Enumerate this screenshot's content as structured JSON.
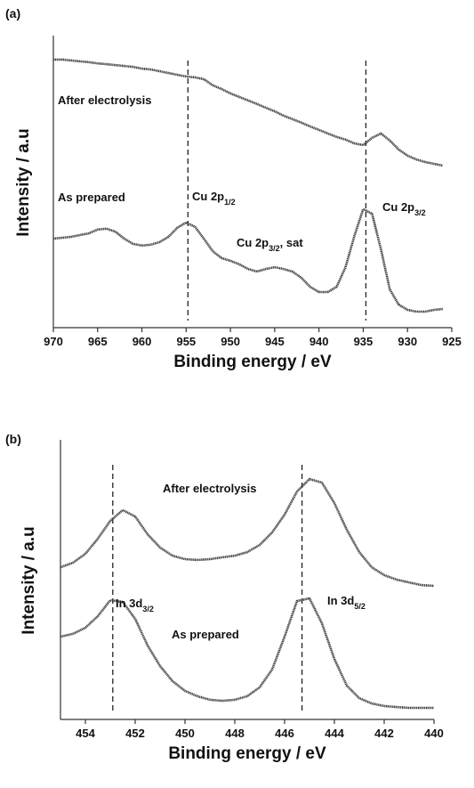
{
  "chart_data": [
    {
      "type": "line",
      "panel_label": "(a)",
      "xlabel": "Binding energy / eV",
      "ylabel": "Intensity / a.u",
      "xlim": [
        970,
        925
      ],
      "xticks": [
        970,
        965,
        960,
        955,
        950,
        945,
        940,
        935,
        930,
        925
      ],
      "ylim": [
        0,
        100
      ],
      "reference_lines": [
        954.8,
        934.7
      ],
      "x": [
        970,
        969,
        968,
        967,
        966,
        965,
        964,
        963,
        962,
        961,
        960,
        959,
        958,
        957,
        956,
        955,
        954,
        953,
        952,
        951,
        950,
        949,
        948,
        947,
        946,
        945,
        944,
        943,
        942,
        941,
        940,
        939,
        938,
        937,
        936,
        935,
        934,
        933,
        932,
        931,
        930,
        929,
        928,
        927,
        926
      ],
      "series": [
        {
          "name": "After electrolysis",
          "color": "#3a3a3a",
          "values": [
            91.8,
            91.8,
            91.5,
            91.2,
            90.9,
            90.5,
            90.2,
            89.9,
            89.6,
            89.3,
            88.7,
            88.4,
            87.8,
            87.2,
            86.6,
            86.0,
            85.7,
            85.1,
            83.0,
            81.7,
            80.2,
            79.0,
            77.8,
            76.6,
            75.3,
            74.1,
            72.6,
            71.4,
            70.2,
            68.9,
            67.7,
            66.5,
            65.3,
            64.4,
            63.1,
            62.5,
            65.0,
            66.5,
            64.1,
            61.0,
            58.9,
            57.6,
            56.7,
            56.1,
            55.5
          ]
        },
        {
          "name": "As prepared",
          "color": "#3a3a3a",
          "values": [
            30.5,
            30.8,
            31.1,
            31.7,
            32.3,
            33.6,
            33.9,
            32.9,
            30.5,
            28.7,
            28.1,
            28.4,
            29.3,
            31.1,
            34.2,
            36.0,
            34.5,
            30.5,
            26.2,
            23.8,
            22.9,
            21.7,
            20.1,
            19.2,
            20.1,
            20.7,
            20.1,
            19.2,
            17.1,
            14.0,
            12.2,
            12.2,
            14.0,
            20.7,
            31.4,
            40.6,
            39.0,
            26.8,
            13.1,
            7.9,
            6.1,
            5.5,
            5.5,
            6.1,
            6.4
          ]
        }
      ],
      "annotations": [
        {
          "parts": [
            {
              "text": "Cu 2p"
            },
            {
              "sub": "1/2"
            }
          ]
        },
        {
          "parts": [
            {
              "text": "Cu 2p"
            },
            {
              "sub": "3/2"
            }
          ]
        },
        {
          "parts": [
            {
              "text": "Cu 2p"
            },
            {
              "sub": "3/2"
            },
            {
              "text": ", sat"
            }
          ]
        }
      ]
    },
    {
      "type": "line",
      "panel_label": "(b)",
      "xlabel": "Binding energy / eV",
      "ylabel": "Intensity / a.u",
      "xlim": [
        455,
        440
      ],
      "xticks": [
        454,
        452,
        450,
        448,
        446,
        444,
        442,
        440
      ],
      "ylim": [
        0,
        100
      ],
      "reference_lines": [
        452.9,
        445.3
      ],
      "x": [
        455,
        454.5,
        454,
        453.5,
        453,
        452.5,
        452,
        451.5,
        451,
        450.5,
        450,
        449.5,
        449,
        448.5,
        448,
        447.5,
        447,
        446.5,
        446,
        445.5,
        445,
        444.5,
        444,
        443.5,
        443,
        442.5,
        442,
        441.5,
        441,
        440.5,
        440
      ],
      "series": [
        {
          "name": "After electrolysis",
          "color": "#3a3a3a",
          "values": [
            56.4,
            58.1,
            61.4,
            67.0,
            73.6,
            77.6,
            75.2,
            68.6,
            63.7,
            60.7,
            59.4,
            59.1,
            59.4,
            60.1,
            60.7,
            62.0,
            64.7,
            69.3,
            75.9,
            84.5,
            89.1,
            87.8,
            80.2,
            70.3,
            62.0,
            56.4,
            53.5,
            51.8,
            50.8,
            49.8,
            49.5
          ]
        },
        {
          "name": "As prepared",
          "color": "#3a3a3a",
          "values": [
            30.7,
            31.7,
            34.0,
            38.3,
            44.2,
            43.6,
            37.3,
            27.4,
            19.8,
            14.2,
            10.6,
            8.6,
            7.3,
            6.9,
            7.3,
            8.6,
            11.9,
            18.5,
            30.7,
            43.9,
            44.9,
            35.6,
            22.4,
            12.5,
            7.9,
            5.9,
            5.0,
            4.6,
            4.3,
            4.3,
            4.3
          ]
        }
      ],
      "annotations": [
        {
          "parts": [
            {
              "text": "In 3d"
            },
            {
              "sub": "3/2"
            }
          ]
        },
        {
          "parts": [
            {
              "text": "In 3d"
            },
            {
              "sub": "5/2"
            }
          ]
        }
      ]
    }
  ]
}
